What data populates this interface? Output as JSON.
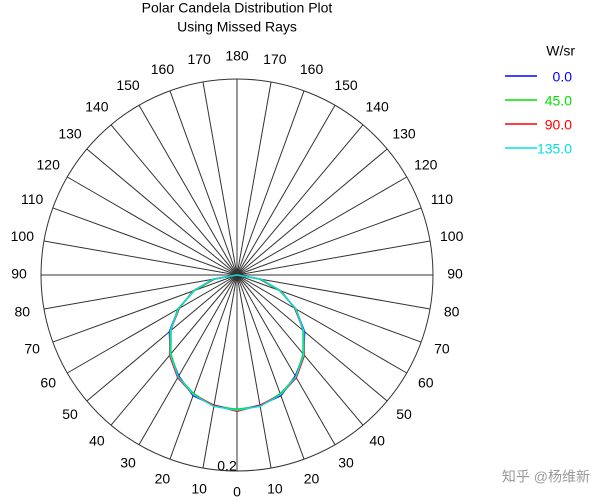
{
  "chart_data": {
    "type": "polar",
    "title": "Polar Candela Distribution Plot",
    "subtitle": "Using Missed Rays",
    "legend_title": "W/sr",
    "theta": [
      0,
      10,
      20,
      30,
      40,
      50,
      60,
      70,
      80,
      90
    ],
    "theta_ticks": [
      0,
      10,
      20,
      30,
      40,
      50,
      60,
      70,
      80,
      90,
      100,
      110,
      120,
      130,
      140,
      150,
      160,
      170,
      180
    ],
    "rlim": [
      0,
      0.2
    ],
    "rticks": [
      0.2
    ],
    "series": [
      {
        "name": "0.0",
        "color": "#0000ff",
        "values": [
          0.138,
          0.135,
          0.131,
          0.119,
          0.106,
          0.09,
          0.069,
          0.047,
          0.024,
          0.0
        ]
      },
      {
        "name": "45.0",
        "color": "#00e000",
        "values": [
          0.137,
          0.136,
          0.129,
          0.12,
          0.105,
          0.088,
          0.07,
          0.046,
          0.023,
          0.0
        ]
      },
      {
        "name": "90.0",
        "color": "#ff0000",
        "values": [
          0.139,
          0.135,
          0.13,
          0.121,
          0.107,
          0.089,
          0.068,
          0.048,
          0.024,
          0.0
        ]
      },
      {
        "name": "135.0",
        "color": "#00e0e0",
        "values": [
          0.138,
          0.136,
          0.13,
          0.12,
          0.106,
          0.089,
          0.069,
          0.047,
          0.025,
          0.0
        ]
      }
    ],
    "watermark": "知乎 @杨维新"
  }
}
